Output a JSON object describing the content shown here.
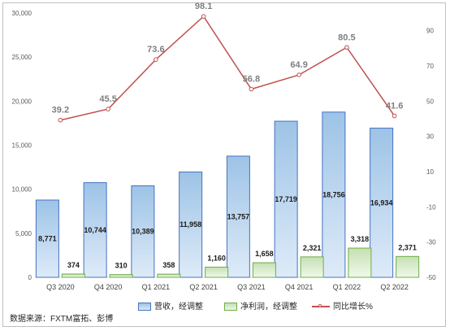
{
  "chart_data": {
    "type": "bar",
    "categories": [
      "Q3 2020",
      "Q4 2020",
      "Q1 2021",
      "Q2 2021",
      "Q3 2021",
      "Q4 2021",
      "Q1 2022",
      "Q2 2022"
    ],
    "series": [
      {
        "name": "营收，经调整",
        "kind": "bar",
        "axis": "left",
        "color": "#4472c4",
        "values": [
          8771,
          10744,
          10389,
          11958,
          13757,
          17719,
          18756,
          16934
        ],
        "labels": [
          "8,771",
          "10,744",
          "10,389",
          "11,958",
          "13,757",
          "17,719",
          "18,756",
          "16,934"
        ]
      },
      {
        "name": "净利润，经调整",
        "kind": "bar",
        "axis": "left",
        "color": "#70ad47",
        "values": [
          374,
          310,
          358,
          1160,
          1658,
          2321,
          3318,
          2371
        ],
        "labels": [
          "374",
          "310",
          "358",
          "1,160",
          "1,658",
          "2,321",
          "3,318",
          "2,371"
        ]
      },
      {
        "name": "同比增长%",
        "kind": "line",
        "axis": "right",
        "color": "#c0504d",
        "values": [
          39.2,
          45.5,
          73.6,
          98.1,
          56.8,
          64.9,
          80.5,
          41.6
        ],
        "labels": [
          "39.2",
          "45.5",
          "73.6",
          "98.1",
          "56.8",
          "64.9",
          "80.5",
          "41.6"
        ]
      }
    ],
    "ylim": [
      0,
      30000
    ],
    "yticks": [
      0,
      5000,
      10000,
      15000,
      20000,
      25000,
      30000
    ],
    "ytick_labels": [
      "0",
      "5,000",
      "10,000",
      "15,000",
      "20,000",
      "25,000",
      "30,000"
    ],
    "y2lim": [
      -50,
      100
    ],
    "y2ticks": [
      -50,
      -30,
      -10,
      10,
      30,
      50,
      70,
      90
    ],
    "y2tick_labels": [
      "-50",
      "-30",
      "-10",
      "10",
      "30",
      "50",
      "70",
      "90"
    ],
    "legend": [
      "营收，经调整",
      "净利润，经调整",
      "同比增长%"
    ],
    "legend_position": "bottom",
    "grid": false
  },
  "footer": {
    "source": "数据来源：FXTM富拓、彭博"
  }
}
